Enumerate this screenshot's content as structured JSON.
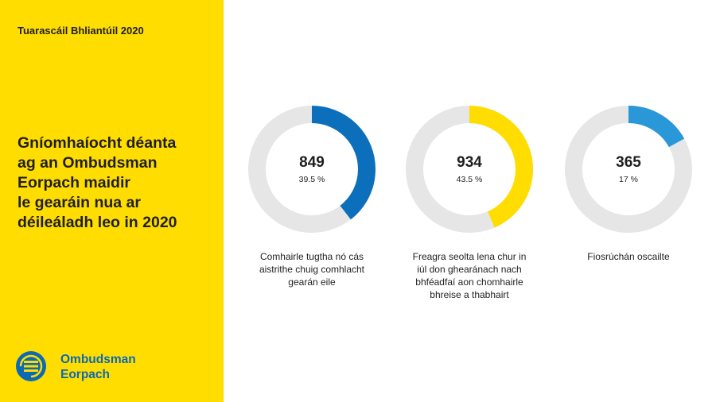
{
  "report_label": "Tuarascáil Bhliantúil 2020",
  "headline_lines": [
    "Gníomhaíocht déanta",
    "ag an Ombudsman",
    "Eorpach maidir",
    "le gearáin nua ar",
    "déileáladh leo in 2020"
  ],
  "logo": {
    "line1": "Ombudsman",
    "line2": "Eorpach",
    "icon": "european-ombudsman-logo-icon",
    "color": "#0c69b4"
  },
  "colors": {
    "sidebar": "#ffdd00",
    "track": "#e6e6e6"
  },
  "chart_data": {
    "type": "pie",
    "items": [
      {
        "value": "849",
        "percent_label": "39.5 %",
        "percent": 39.5,
        "color": "#0c6fbb",
        "caption_lines": [
          "Comhairle tugtha nó cás",
          "aistrithe chuig comhlacht",
          "gearán eile"
        ]
      },
      {
        "value": "934",
        "percent_label": "43.5 %",
        "percent": 43.5,
        "color": "#ffdd00",
        "caption_lines": [
          "Freagra seolta lena chur in",
          "iúl don ghearánach nach",
          "bhféadfaí aon chomhairle",
          "bhreise a thabhairt"
        ]
      },
      {
        "value": "365",
        "percent_label": "17 %",
        "percent": 17,
        "color": "#2997d8",
        "caption_lines": [
          "Fiosrúchán oscailte"
        ]
      }
    ]
  }
}
